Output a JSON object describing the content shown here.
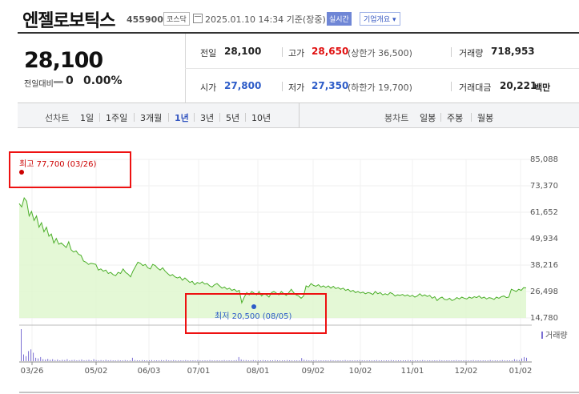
{
  "header": {
    "company_name": "엔젤로보틱스",
    "code": "455900",
    "market_badge": "코스닥",
    "as_of": "2025.01.10 14:34 기준(장중)",
    "realtime_badge": "실시간",
    "company_info_button": "기업개요 ▾"
  },
  "price": {
    "current": "28,100",
    "change_label": "전일대비",
    "change_value": "0",
    "change_pct": "0.00%"
  },
  "stats": {
    "prev_close": {
      "label": "전일",
      "value": "28,100"
    },
    "high": {
      "label": "고가",
      "value": "28,650",
      "sub": "(상한가 36,500)"
    },
    "volume": {
      "label": "거래량",
      "value": "718,953"
    },
    "open": {
      "label": "시가",
      "value": "27,800"
    },
    "low": {
      "label": "저가",
      "value": "27,350",
      "sub": "(하한가 19,700)"
    },
    "trade_value": {
      "label": "거래대금",
      "value": "20,221",
      "unit": "백만"
    }
  },
  "range_bar": {
    "line_chart_label": "선차트",
    "line_ranges": [
      "1일",
      "1주일",
      "3개월",
      "1년",
      "3년",
      "5년",
      "10년"
    ],
    "selected_range": "1년",
    "candle_chart_label": "봉차트",
    "candle_ranges": [
      "일봉",
      "주봉",
      "월봉"
    ]
  },
  "colors": {
    "up": "#e01010",
    "down": "#2d5cc8",
    "line": "#4caf2a",
    "fill": "#dff7cf",
    "highlight_box": "#e11"
  },
  "chart_data": {
    "type": "area",
    "title": "",
    "y_ticks": [
      "85,088",
      "73,370",
      "61,652",
      "49,934",
      "38,216",
      "26,498",
      "14,780"
    ],
    "ylim": [
      14780,
      85088
    ],
    "x_ticks": [
      "03/26",
      "05/02",
      "06/03",
      "07/01",
      "08/01",
      "09/02",
      "10/02",
      "11/01",
      "12/02",
      "01/02"
    ],
    "high_label": "최고 77,700 (03/26)",
    "low_label": "최저 20,500 (08/05)",
    "volume_label": "거래량",
    "series": [
      {
        "values": [
          65500,
          64000,
          68000,
          66500,
          60000,
          62000,
          58000,
          60000,
          55000,
          57000,
          53000,
          55000,
          51000,
          52000,
          48000,
          50000,
          47500,
          48000,
          47000,
          46000,
          48500,
          45000,
          44000,
          44500,
          43000,
          42500,
          40000,
          39500,
          38500,
          39000,
          38800,
          38500,
          36000,
          36500,
          35500,
          36000,
          34500,
          35000,
          34000,
          33500,
          35000,
          34500,
          36500,
          35000,
          34200,
          33000,
          35500,
          37500,
          39500,
          39000,
          38000,
          38500,
          37000,
          36500,
          38500,
          38000,
          36800,
          36000,
          37000,
          35500,
          34500,
          33500,
          34000,
          33000,
          32500,
          33000,
          31500,
          32500,
          31500,
          30500,
          31000,
          29500,
          30500,
          30000,
          30800,
          29800,
          30000,
          29000,
          28500,
          29500,
          30000,
          29000,
          28000,
          28500,
          27500,
          28000,
          27000,
          27500,
          26500,
          27000,
          21500,
          24000,
          26000,
          25000,
          26500,
          25800,
          25000,
          26500,
          24500,
          25500,
          25000,
          24000,
          26000,
          26500,
          25800,
          25000,
          26500,
          25500,
          24800,
          26000,
          27500,
          26000,
          25000,
          24500,
          23500,
          24500,
          29000,
          28500,
          30000,
          29200,
          28800,
          29500,
          28500,
          29000,
          28300,
          29000,
          28000,
          28800,
          27800,
          28200,
          27500,
          28000,
          27000,
          27500,
          26500,
          27000,
          26000,
          26500,
          25800,
          26200,
          25500,
          26000,
          25800,
          25200,
          26500,
          25500,
          26000,
          25000,
          25500,
          25000,
          26000,
          25500,
          24500,
          25000,
          24800,
          25200,
          24500,
          25000,
          24300,
          24800,
          24000,
          24500,
          25500,
          24500,
          25000,
          24300,
          24800,
          23500,
          24200,
          22500,
          23500,
          24000,
          23000,
          22800,
          23500,
          22500,
          23000,
          23800,
          23200,
          24000,
          23500,
          23200,
          24000,
          23500,
          24200,
          23800,
          24500,
          23500,
          24000,
          23200,
          23800,
          23500,
          23000,
          24000,
          23500,
          24200,
          24500,
          23800,
          24000,
          27500,
          27000,
          26500,
          27500,
          27000,
          28200,
          28100
        ]
      }
    ],
    "volume": [
      95,
      20,
      15,
      30,
      35,
      25,
      10,
      8,
      12,
      6,
      5,
      7,
      4,
      6,
      3,
      5,
      2,
      4,
      3,
      6,
      2,
      3,
      4,
      2,
      3,
      5,
      2,
      3,
      4,
      2,
      6,
      3,
      2,
      3,
      2,
      4,
      2,
      3,
      2,
      2,
      3,
      2,
      2,
      3,
      2,
      2,
      10,
      3,
      2,
      2,
      3,
      2,
      2,
      2,
      3,
      2,
      2,
      2,
      3,
      2,
      4,
      2,
      2,
      3,
      2,
      2,
      2,
      2,
      3,
      2,
      2,
      2,
      2,
      3,
      2,
      2,
      2,
      2,
      3,
      2,
      2,
      2,
      2,
      2,
      3,
      2,
      2,
      2,
      2,
      3,
      12,
      5,
      3,
      3,
      2,
      2,
      3,
      2,
      2,
      2,
      3,
      2,
      2,
      2,
      2,
      3,
      2,
      2,
      2,
      2,
      3,
      2,
      2,
      2,
      2,
      2,
      9,
      4,
      3,
      2,
      2,
      2,
      3,
      2,
      2,
      2,
      2,
      2,
      3,
      2,
      2,
      2,
      2,
      2,
      3,
      2,
      2,
      2,
      2,
      2,
      3,
      2,
      2,
      2,
      2,
      2,
      2,
      3,
      2,
      2,
      2,
      2,
      2,
      3,
      2,
      2,
      2,
      2,
      2,
      2,
      3,
      2,
      2,
      2,
      2,
      2,
      3,
      2,
      2,
      2,
      2,
      2,
      2,
      3,
      2,
      2,
      2,
      2,
      2,
      2,
      3,
      2,
      2,
      2,
      2,
      2,
      2,
      3,
      2,
      2,
      2,
      2,
      2,
      2,
      3,
      2,
      2,
      2,
      2,
      3,
      2,
      2,
      2,
      2,
      6,
      4,
      3,
      8,
      12,
      10
    ]
  }
}
